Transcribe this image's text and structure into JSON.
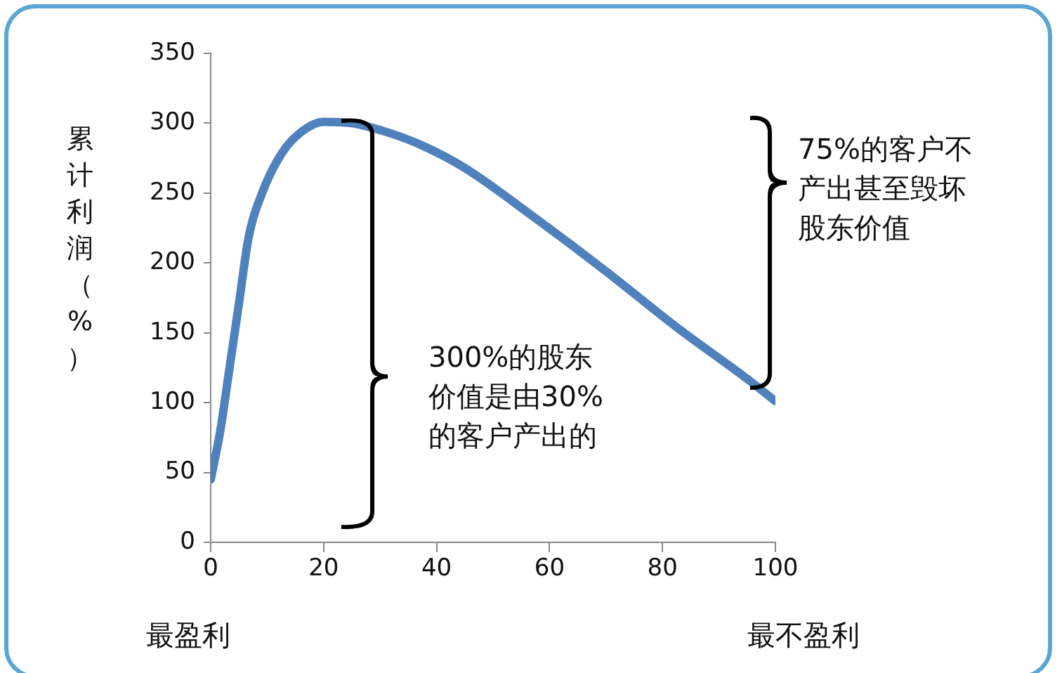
{
  "chart_data": {
    "type": "line",
    "ylabel": "累计利润（%）",
    "x": [
      0,
      1.7,
      3.3,
      5,
      6.7,
      9.2,
      12.5,
      15.8,
      20,
      25,
      31.7,
      37.5,
      45,
      57.5,
      70,
      82.5,
      95,
      100
    ],
    "series": [
      {
        "color": "#4f81bd",
        "values": [
          45,
          80,
          124,
          171,
          218,
          251,
          278,
          293,
          301,
          300,
          293,
          284,
          268,
          232,
          194,
          154,
          117,
          101
        ]
      }
    ],
    "xlim": [
      0,
      100
    ],
    "xticks": [
      0,
      20,
      40,
      60,
      80,
      100
    ],
    "ylim": [
      0,
      350
    ],
    "yticks": [
      0,
      50,
      100,
      150,
      200,
      250,
      300,
      350
    ],
    "grid": false,
    "legend": false,
    "marker": "none",
    "line_style": "solid",
    "annotations": [
      "300%的股东价值是由30%的客户产出的",
      "75%的客户不产出甚至毁坏股东价值",
      "最盈利",
      "最不盈利"
    ]
  }
}
